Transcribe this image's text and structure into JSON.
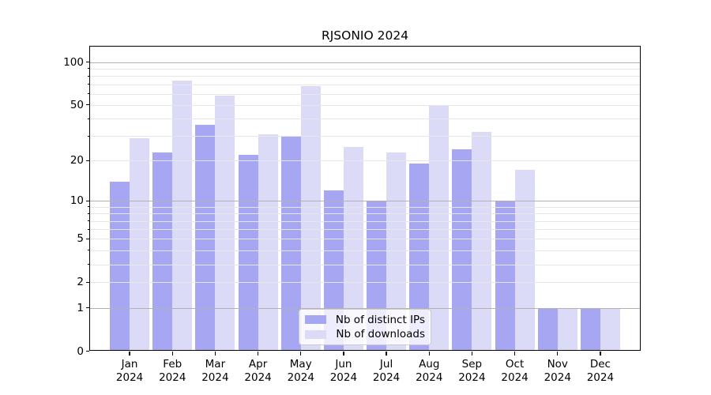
{
  "title": "RJSONIO 2024",
  "chart_data": {
    "type": "bar",
    "title": "RJSONIO 2024",
    "scale": "log1p",
    "grid": true,
    "categories": [
      "Jan",
      "Feb",
      "Mar",
      "Apr",
      "May",
      "Jun",
      "Jul",
      "Aug",
      "Sep",
      "Oct",
      "Nov",
      "Dec"
    ],
    "category_year": "2024",
    "series": [
      {
        "name": "Nb of distinct IPs",
        "color": "#a6a6f2",
        "values": [
          14,
          23,
          36,
          22,
          30,
          12,
          10,
          19,
          24,
          10,
          1,
          1
        ]
      },
      {
        "name": "Nb of downloads",
        "color": "#dbdbf7",
        "values": [
          29,
          74,
          58,
          31,
          68,
          25,
          23,
          50,
          32,
          17,
          1,
          1
        ]
      }
    ],
    "ylim": [
      0,
      130
    ],
    "yticks_labeled": [
      100,
      50,
      20,
      10,
      5,
      2,
      1,
      0
    ],
    "ygrid_major": [
      1,
      10,
      100
    ],
    "ygrid_minor": [
      2,
      3,
      4,
      5,
      6,
      7,
      8,
      9,
      20,
      30,
      40,
      50,
      60,
      70,
      80,
      90
    ],
    "xlabel": "",
    "ylabel": "",
    "legend_position": "lower center"
  },
  "colors": {
    "ips_bar": "#a6a6f2",
    "downloads_bar": "#dbdbf7",
    "grid_major": "#b2b2b2",
    "grid_minor": "#e7e7e7",
    "axis": "#000000",
    "legend_border": "#cccccc"
  }
}
